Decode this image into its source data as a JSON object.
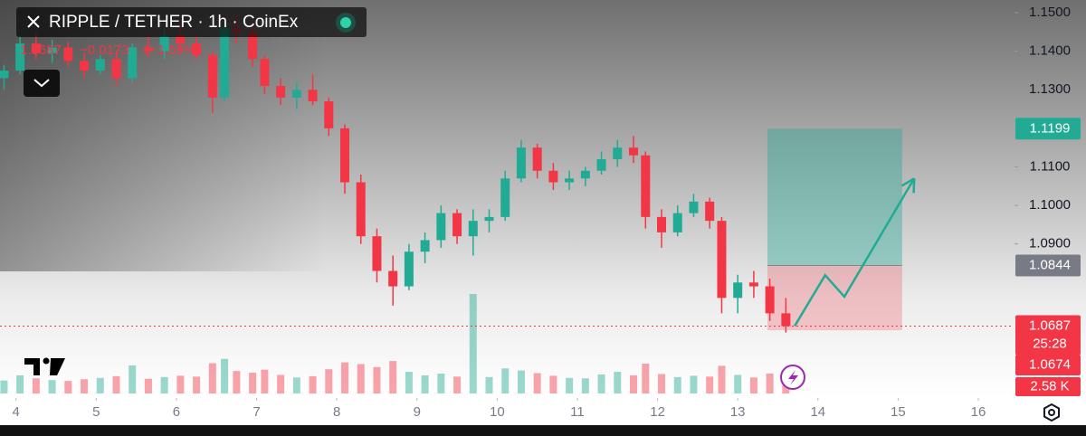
{
  "chart_data": {
    "type": "candlestick",
    "title": "RIPPLE / TETHER · 1h · CoinEx",
    "last_price": 1.0687,
    "change": {
      "value": -0.0173,
      "label": "−0.0173"
    },
    "change_percent": {
      "value": -1.59,
      "label": "(−1.59%)"
    },
    "countdown": "25:28",
    "bid": 1.0674,
    "x": [
      3.85,
      4.05,
      4.25,
      4.45,
      4.65,
      4.85,
      5.05,
      5.25,
      5.45,
      5.65,
      5.85,
      6.05,
      6.25,
      6.45,
      6.6,
      6.75,
      6.95,
      7.1,
      7.3,
      7.5,
      7.7,
      7.9,
      8.1,
      8.3,
      8.5,
      8.7,
      8.9,
      9.1,
      9.3,
      9.5,
      9.7,
      9.9,
      10.1,
      10.3,
      10.5,
      10.7,
      10.9,
      11.1,
      11.3,
      11.5,
      11.7,
      11.85,
      12.05,
      12.25,
      12.45,
      12.65,
      12.8,
      13.0,
      13.2,
      13.4,
      13.6
    ],
    "open": [
      1.133,
      1.135,
      1.142,
      1.1395,
      1.141,
      1.1375,
      1.135,
      1.138,
      1.133,
      1.141,
      1.14,
      1.144,
      1.142,
      1.139,
      1.128,
      1.146,
      1.145,
      1.138,
      1.131,
      1.128,
      1.13,
      1.127,
      1.12,
      1.106,
      1.092,
      1.083,
      1.079,
      1.088,
      1.091,
      1.098,
      1.092,
      1.096,
      1.097,
      1.107,
      1.115,
      1.109,
      1.106,
      1.107,
      1.109,
      1.112,
      1.115,
      1.113,
      1.097,
      1.093,
      1.098,
      1.101,
      1.096,
      1.076,
      1.08,
      1.079,
      1.072
    ],
    "high": [
      1.1365,
      1.144,
      1.145,
      1.143,
      1.1425,
      1.1395,
      1.139,
      1.14,
      1.142,
      1.144,
      1.146,
      1.147,
      1.145,
      1.14,
      1.148,
      1.15,
      1.147,
      1.139,
      1.133,
      1.132,
      1.134,
      1.128,
      1.121,
      1.108,
      1.094,
      1.087,
      1.09,
      1.093,
      1.1,
      1.099,
      1.099,
      1.099,
      1.109,
      1.117,
      1.116,
      1.111,
      1.109,
      1.11,
      1.114,
      1.117,
      1.118,
      1.114,
      1.099,
      1.1,
      1.103,
      1.102,
      1.097,
      1.082,
      1.083,
      1.081,
      1.076
    ],
    "low": [
      1.13,
      1.134,
      1.138,
      1.137,
      1.136,
      1.133,
      1.134,
      1.131,
      1.132,
      1.139,
      1.138,
      1.14,
      1.138,
      1.124,
      1.127,
      1.142,
      1.136,
      1.129,
      1.126,
      1.125,
      1.126,
      1.118,
      1.103,
      1.09,
      1.08,
      1.074,
      1.078,
      1.085,
      1.089,
      1.09,
      1.087,
      1.093,
      1.096,
      1.106,
      1.107,
      1.104,
      1.104,
      1.105,
      1.108,
      1.11,
      1.111,
      1.094,
      1.089,
      1.092,
      1.097,
      1.094,
      1.072,
      1.072,
      1.076,
      1.07,
      1.067
    ],
    "close": [
      1.135,
      1.142,
      1.1395,
      1.141,
      1.1375,
      1.135,
      1.138,
      1.133,
      1.141,
      1.14,
      1.144,
      1.142,
      1.139,
      1.128,
      1.146,
      1.145,
      1.138,
      1.131,
      1.128,
      1.13,
      1.127,
      1.12,
      1.106,
      1.092,
      1.083,
      1.079,
      1.088,
      1.091,
      1.098,
      1.092,
      1.096,
      1.097,
      1.107,
      1.115,
      1.109,
      1.106,
      1.107,
      1.109,
      1.112,
      1.115,
      1.113,
      1.097,
      1.093,
      1.098,
      1.101,
      1.096,
      1.076,
      1.08,
      1.079,
      1.072,
      1.0687
    ],
    "volume": {
      "values": [
        3000,
        4200,
        3500,
        3100,
        2900,
        3300,
        3600,
        4000,
        6500,
        3400,
        3800,
        4100,
        3900,
        7000,
        8000,
        5200,
        4800,
        5500,
        4300,
        3700,
        4000,
        5600,
        7200,
        6800,
        6100,
        7500,
        5000,
        4200,
        4600,
        3900,
        23000,
        3800,
        5800,
        5300,
        4700,
        4100,
        3600,
        3500,
        4400,
        5000,
        4200,
        6900,
        4500,
        3800,
        4100,
        3900,
        6400,
        4300,
        3700,
        4600,
        2580
      ],
      "value_labels": [
        null,
        null,
        null,
        null,
        null,
        null,
        null,
        null,
        null,
        null,
        null,
        null,
        null,
        null,
        null,
        null,
        null,
        null,
        null,
        null,
        null,
        null,
        null,
        null,
        null,
        null,
        null,
        null,
        null,
        null,
        null,
        null,
        null,
        null,
        null,
        null,
        null,
        null,
        null,
        null,
        null,
        null,
        null,
        null,
        null,
        null,
        null,
        null,
        null,
        null,
        "2.58 K"
      ]
    },
    "up_color": "#22ab94",
    "down_color": "#f23645",
    "position": {
      "start": 13.37,
      "end": 15.05,
      "entry": 1.0844,
      "target": 1.1199,
      "stop": 1.0676
    },
    "projection": {
      "x": [
        13.71,
        14.09,
        14.33,
        15.2
      ],
      "y": [
        1.0687,
        1.0819,
        1.0763,
        1.107
      ]
    },
    "xlim": [
      3.8,
      16.44
    ],
    "xticks": [
      4,
      5,
      6,
      7,
      8,
      9,
      10,
      11,
      12,
      13,
      14,
      15,
      16
    ],
    "ylim": [
      1.0512,
      1.1533
    ],
    "yticks": [
      {
        "value": 1.15,
        "label": "1.1500"
      },
      {
        "value": 1.14,
        "label": "1.1400"
      },
      {
        "value": 1.13,
        "label": "1.1300"
      },
      {
        "value": 1.11,
        "label": "1.1100"
      },
      {
        "value": 1.1,
        "label": "1.1000"
      },
      {
        "value": 1.09,
        "label": "1.0900"
      }
    ]
  }
}
